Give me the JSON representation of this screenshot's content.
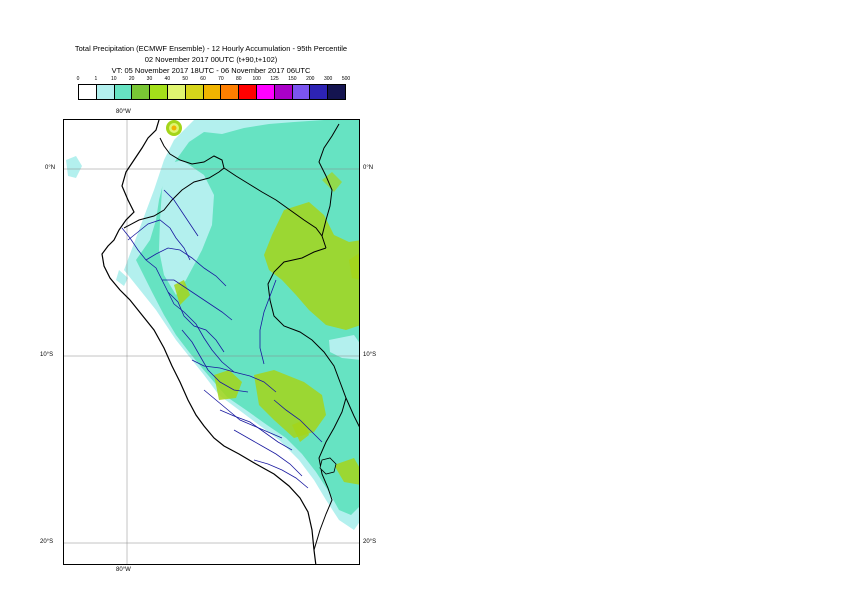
{
  "title": {
    "line1": "Total Precipitation (ECMWF Ensemble) - 12 Hourly Accumulation - 95th Percentile",
    "line2": "02 November 2017 00UTC (t+90,t+102)",
    "line3": "VT: 05 November 2017 18UTC - 06 November 2017 06UTC"
  },
  "legend": {
    "ticks": [
      "0",
      "1",
      "10",
      "20",
      "30",
      "40",
      "50",
      "60",
      "70",
      "80",
      "100",
      "125",
      "150",
      "200",
      "300",
      "500"
    ],
    "colors": [
      "#ffffff",
      "#b3f0ee",
      "#66e3c2",
      "#79c635",
      "#a4e01a",
      "#e0f570",
      "#d6d51a",
      "#f0b400",
      "#ff7f00",
      "#ff0000",
      "#ff00ff",
      "#aa00c8",
      "#7b55f0",
      "#2d23b4",
      "#141450"
    ]
  },
  "map": {
    "lon_labels": {
      "top": "80°W",
      "bottom": "80°W"
    },
    "lat_labels": [
      {
        "left": "0°N",
        "right": "0°N"
      },
      {
        "left": "10°S",
        "right": "10°S"
      },
      {
        "left": "20°S",
        "right": "20°S"
      }
    ],
    "colors": {
      "light": "#b3f0ee",
      "medium": "#66e3c2",
      "green": "#a4d51a",
      "yellow": "#e0f570",
      "orange": "#f0b400",
      "coast": "#000000",
      "border": "#000000",
      "region": "#1a1aa0"
    }
  }
}
